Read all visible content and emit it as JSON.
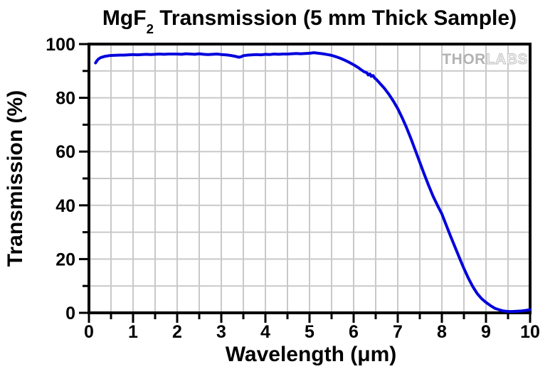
{
  "title": {
    "formula": "MgF",
    "formula_sub": "2",
    "rest": " Transmission (5 mm Thick Sample)"
  },
  "x_axis": {
    "label": "Wavelength (μm)",
    "ticks": [
      0,
      1,
      2,
      3,
      4,
      5,
      6,
      7,
      8,
      9,
      10
    ],
    "minor_step": 0.5,
    "range": [
      0,
      10
    ]
  },
  "y_axis": {
    "label": "Transmission (%)",
    "ticks": [
      0,
      20,
      40,
      60,
      80,
      100
    ],
    "minor_step": 10,
    "range": [
      0,
      100
    ]
  },
  "watermark": {
    "part1": "THOR",
    "part2": "LABS"
  },
  "colors": {
    "curve": "#0000DD",
    "grid": "#c9c9c9",
    "frame": "#000000",
    "text": "#000000",
    "watermark_solid": "#b3b3b3",
    "watermark_outline_fill": "#f0f0f0",
    "watermark_outline_stroke": "#c0c0c0"
  },
  "chart_data": {
    "type": "line",
    "title": "MgF2 Transmission (5 mm Thick Sample)",
    "xlabel": "Wavelength (μm)",
    "ylabel": "Transmission (%)",
    "xlim": [
      0,
      10
    ],
    "ylim": [
      0,
      100
    ],
    "grid": true,
    "legend": "none",
    "series": [
      {
        "name": "MgF2 transmission (5 mm thick)",
        "color": "#0000DD",
        "points": [
          [
            0.15,
            93.0
          ],
          [
            0.18,
            93.8
          ],
          [
            0.22,
            94.5
          ],
          [
            0.27,
            95.0
          ],
          [
            0.35,
            95.4
          ],
          [
            0.45,
            95.7
          ],
          [
            0.55,
            95.8
          ],
          [
            0.7,
            95.9
          ],
          [
            0.8,
            95.9
          ],
          [
            0.9,
            96.0
          ],
          [
            1.0,
            96.1
          ],
          [
            1.1,
            96.0
          ],
          [
            1.2,
            96.1
          ],
          [
            1.3,
            96.2
          ],
          [
            1.4,
            96.1
          ],
          [
            1.5,
            96.2
          ],
          [
            1.6,
            96.3
          ],
          [
            1.7,
            96.2
          ],
          [
            1.8,
            96.3
          ],
          [
            1.9,
            96.3
          ],
          [
            2.0,
            96.3
          ],
          [
            2.1,
            96.2
          ],
          [
            2.2,
            96.4
          ],
          [
            2.3,
            96.3
          ],
          [
            2.4,
            96.2
          ],
          [
            2.5,
            96.4
          ],
          [
            2.6,
            96.2
          ],
          [
            2.7,
            96.1
          ],
          [
            2.8,
            96.2
          ],
          [
            2.9,
            96.3
          ],
          [
            3.0,
            96.1
          ],
          [
            3.1,
            96.0
          ],
          [
            3.2,
            95.8
          ],
          [
            3.3,
            95.5
          ],
          [
            3.4,
            95.1
          ],
          [
            3.45,
            95.3
          ],
          [
            3.5,
            95.7
          ],
          [
            3.6,
            95.9
          ],
          [
            3.7,
            96.0
          ],
          [
            3.8,
            96.1
          ],
          [
            3.9,
            96.0
          ],
          [
            4.0,
            96.2
          ],
          [
            4.1,
            96.1
          ],
          [
            4.2,
            96.3
          ],
          [
            4.3,
            96.2
          ],
          [
            4.4,
            96.3
          ],
          [
            4.5,
            96.3
          ],
          [
            4.6,
            96.4
          ],
          [
            4.7,
            96.5
          ],
          [
            4.8,
            96.4
          ],
          [
            4.9,
            96.5
          ],
          [
            5.0,
            96.6
          ],
          [
            5.1,
            96.8
          ],
          [
            5.2,
            96.6
          ],
          [
            5.3,
            96.4
          ],
          [
            5.4,
            96.1
          ],
          [
            5.5,
            95.8
          ],
          [
            5.6,
            95.3
          ],
          [
            5.7,
            94.7
          ],
          [
            5.8,
            94.0
          ],
          [
            5.9,
            93.2
          ],
          [
            6.0,
            92.3
          ],
          [
            6.05,
            91.8
          ],
          [
            6.1,
            91.3
          ],
          [
            6.15,
            90.7
          ],
          [
            6.2,
            90.1
          ],
          [
            6.25,
            89.6
          ],
          [
            6.3,
            89.3
          ],
          [
            6.33,
            88.5
          ],
          [
            6.37,
            88.9
          ],
          [
            6.4,
            88.0
          ],
          [
            6.44,
            88.3
          ],
          [
            6.48,
            87.3
          ],
          [
            6.52,
            86.8
          ],
          [
            6.6,
            85.3
          ],
          [
            6.7,
            83.5
          ],
          [
            6.8,
            81.3
          ],
          [
            6.9,
            78.8
          ],
          [
            7.0,
            76.0
          ],
          [
            7.1,
            72.6
          ],
          [
            7.2,
            68.9
          ],
          [
            7.3,
            64.8
          ],
          [
            7.4,
            60.4
          ],
          [
            7.5,
            56.0
          ],
          [
            7.6,
            51.6
          ],
          [
            7.7,
            47.4
          ],
          [
            7.8,
            43.4
          ],
          [
            7.9,
            40.0
          ],
          [
            8.0,
            36.8
          ],
          [
            8.1,
            32.6
          ],
          [
            8.2,
            28.4
          ],
          [
            8.3,
            24.4
          ],
          [
            8.4,
            20.4
          ],
          [
            8.5,
            16.5
          ],
          [
            8.6,
            12.9
          ],
          [
            8.7,
            9.8
          ],
          [
            8.8,
            7.2
          ],
          [
            8.9,
            5.3
          ],
          [
            9.0,
            3.9
          ],
          [
            9.1,
            2.7
          ],
          [
            9.2,
            1.7
          ],
          [
            9.3,
            1.1
          ],
          [
            9.4,
            0.7
          ],
          [
            9.5,
            0.5
          ],
          [
            9.6,
            0.5
          ],
          [
            9.7,
            0.6
          ],
          [
            9.8,
            0.7
          ],
          [
            9.9,
            0.9
          ],
          [
            10.0,
            1.2
          ]
        ]
      }
    ]
  }
}
